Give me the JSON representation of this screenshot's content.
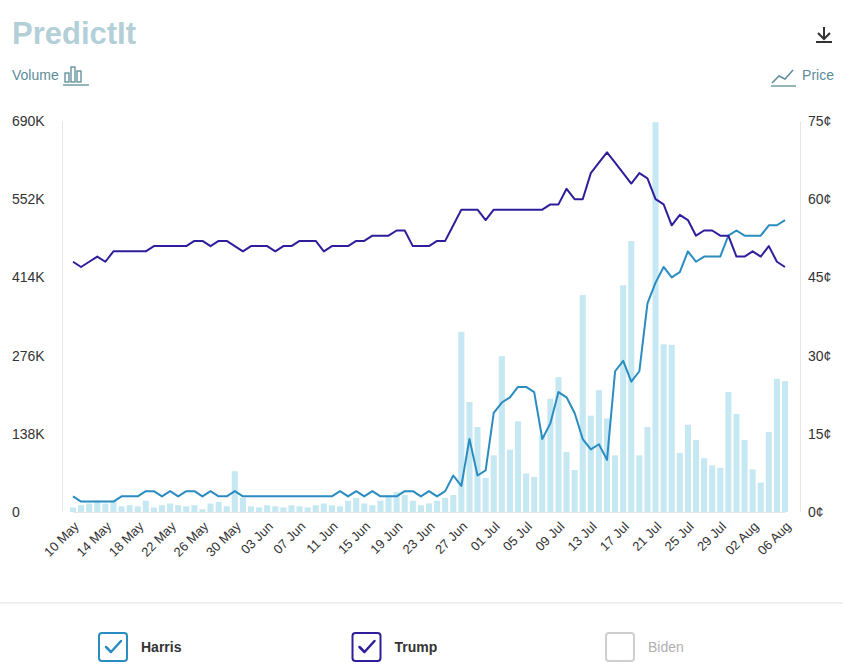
{
  "chart_data": {
    "type": "combo",
    "title": "PredictIt",
    "ylabel": "Volume",
    "y2label": "Price",
    "categories": [
      "10 May",
      null,
      null,
      null,
      "14 May",
      null,
      null,
      null,
      "18 May",
      null,
      null,
      null,
      "22 May",
      null,
      null,
      null,
      "26 May",
      null,
      null,
      null,
      "30 May",
      null,
      null,
      null,
      "03 Jun",
      null,
      null,
      null,
      "07 Jun",
      null,
      null,
      null,
      "11 Jun",
      null,
      null,
      null,
      "15 Jun",
      null,
      null,
      null,
      "19 Jun",
      null,
      null,
      null,
      "23 Jun",
      null,
      null,
      null,
      "27 Jun",
      null,
      null,
      null,
      "01 Jul",
      null,
      null,
      null,
      "05 Jul",
      null,
      null,
      null,
      "09 Jul",
      null,
      null,
      null,
      "13 Jul",
      null,
      null,
      null,
      "17 Jul",
      null,
      null,
      null,
      "21 Jul",
      null,
      null,
      null,
      "25 Jul",
      null,
      null,
      null,
      "29 Jul",
      null,
      null,
      null,
      "02 Aug",
      null,
      null,
      null,
      "06 Aug"
    ],
    "ylim": [
      0,
      690000
    ],
    "yticks": [
      0,
      {
        "value": 138000,
        "label": "138K"
      },
      {
        "value": 276000,
        "label": "276K"
      },
      {
        "value": 414000,
        "label": "414K"
      },
      {
        "value": 552000,
        "label": "552K"
      },
      {
        "value": 690000,
        "label": "690K"
      }
    ],
    "y2lim": [
      0,
      75
    ],
    "y2ticks": [
      {
        "value": 0,
        "label": "0¢"
      },
      {
        "value": 15,
        "label": "15¢"
      },
      {
        "value": 30,
        "label": "30¢"
      },
      {
        "value": 45,
        "label": "45¢"
      },
      {
        "value": 60,
        "label": "60¢"
      },
      {
        "value": 75,
        "label": "75¢"
      }
    ],
    "grid": false,
    "legend": "bottom",
    "series": [
      {
        "type": "bar",
        "axis": "y",
        "color": "#c6e8f2",
        "values": [
          8000,
          12000,
          15000,
          20000,
          15000,
          20000,
          10000,
          12000,
          10000,
          20000,
          8000,
          12000,
          15000,
          12000,
          10000,
          12000,
          5000,
          15000,
          18000,
          10000,
          72000,
          25000,
          10000,
          8000,
          12000,
          10000,
          8000,
          12000,
          10000,
          8000,
          12000,
          15000,
          12000,
          10000,
          20000,
          25000,
          15000,
          12000,
          20000,
          30000,
          35000,
          30000,
          20000,
          12000,
          15000,
          20000,
          25000,
          30000,
          318000,
          194000,
          150000,
          60000,
          100000,
          275000,
          110000,
          160000,
          68000,
          62000,
          135000,
          200000,
          238000,
          106000,
          74000,
          383000,
          170000,
          215000,
          165000,
          100000,
          400000,
          478000,
          100000,
          150000,
          688000,
          296000,
          295000,
          104000,
          154000,
          127000,
          95000,
          82000,
          78000,
          212000,
          173000,
          127000,
          75000,
          52000,
          141000,
          235000,
          231000
        ]
      },
      {
        "name": "Harris",
        "type": "line",
        "axis": "y2",
        "color": "#2a8cc0",
        "values": [
          3,
          2,
          2,
          2,
          2,
          2,
          3,
          3,
          3,
          4,
          4,
          3,
          4,
          3,
          4,
          4,
          3,
          4,
          3,
          3,
          4,
          3,
          3,
          3,
          3,
          3,
          3,
          3,
          3,
          3,
          3,
          3,
          3,
          4,
          3,
          4,
          3,
          4,
          3,
          3,
          3,
          4,
          4,
          3,
          4,
          3,
          4,
          7,
          5,
          14,
          7,
          8,
          19,
          21,
          22,
          24,
          24,
          23,
          14,
          17,
          23,
          22,
          19,
          14,
          12,
          13,
          10,
          27,
          29,
          25,
          27,
          40,
          44,
          47,
          45,
          46,
          50,
          48,
          49,
          49,
          49,
          53,
          54,
          53,
          53,
          53,
          55,
          55,
          56
        ]
      },
      {
        "name": "Trump",
        "type": "line",
        "axis": "y2",
        "color": "#2e1e9c",
        "values": [
          48,
          47,
          48,
          49,
          48,
          50,
          50,
          50,
          50,
          50,
          51,
          51,
          51,
          51,
          51,
          52,
          52,
          51,
          52,
          52,
          51,
          50,
          51,
          51,
          51,
          50,
          51,
          51,
          52,
          52,
          52,
          50,
          51,
          51,
          51,
          52,
          52,
          53,
          53,
          53,
          54,
          54,
          51,
          51,
          51,
          52,
          52,
          55,
          58,
          58,
          58,
          56,
          58,
          58,
          58,
          58,
          58,
          58,
          58,
          59,
          59,
          62,
          60,
          60,
          65,
          67,
          69,
          67,
          65,
          63,
          65,
          64,
          60,
          59,
          55,
          57,
          56,
          53,
          54,
          54,
          53,
          53,
          49,
          49,
          50,
          49,
          51,
          48,
          47
        ]
      },
      {
        "name": "Biden",
        "type": "line",
        "axis": "y2",
        "color": "#cfcfcf",
        "values": [
          null,
          null,
          null,
          null,
          null,
          null,
          null,
          null,
          null,
          null,
          null,
          null,
          null,
          null,
          null,
          null,
          null,
          null,
          null,
          null,
          null,
          null,
          null,
          null,
          null,
          null,
          null,
          null,
          null,
          null,
          null,
          null,
          null,
          null,
          null,
          null,
          null,
          null,
          null,
          null,
          null,
          null,
          null,
          null,
          null,
          null,
          null,
          null,
          null,
          null,
          null,
          null,
          null,
          null,
          null,
          null,
          null,
          null,
          null,
          null,
          null,
          null,
          null,
          null,
          null,
          null,
          null,
          null,
          null,
          null,
          null,
          null,
          null,
          null,
          null,
          null,
          null,
          null,
          null,
          null,
          null,
          null,
          null,
          null,
          null,
          null,
          null,
          null,
          null
        ]
      }
    ]
  }
}
